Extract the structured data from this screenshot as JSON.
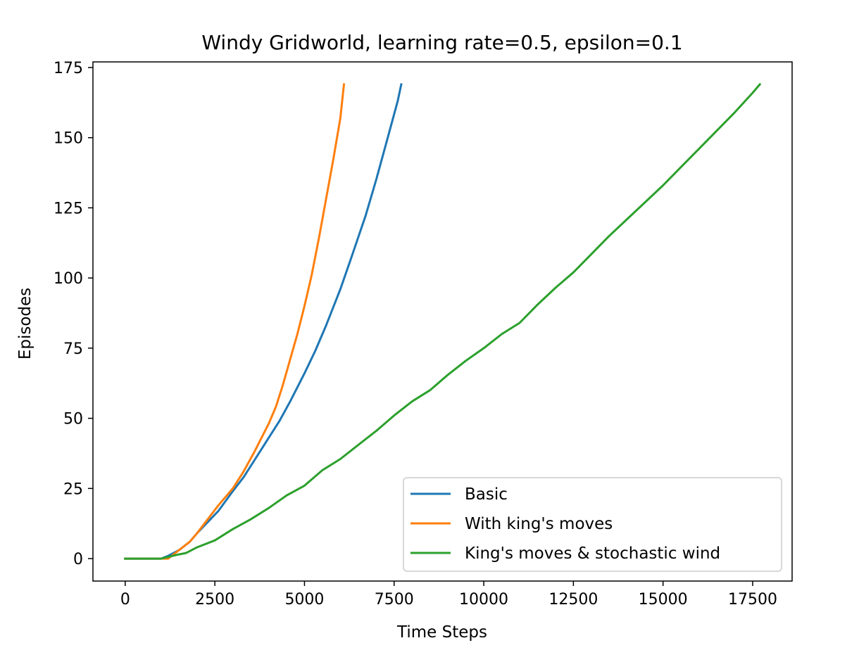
{
  "chart_data": {
    "type": "line",
    "title": "Windy Gridworld, learning rate=0.5, epsilon=0.1",
    "xlabel": "Time Steps",
    "ylabel": "Episodes",
    "xlim": [
      -900,
      18600
    ],
    "ylim": [
      -8,
      177
    ],
    "xticks": [
      0,
      2500,
      5000,
      7500,
      10000,
      12500,
      15000,
      17500
    ],
    "yticks": [
      0,
      25,
      50,
      75,
      100,
      125,
      150,
      175
    ],
    "grid": false,
    "legend": "bottom-right",
    "series": [
      {
        "name": "Basic",
        "color": "#1f77b4",
        "x": [
          0,
          500,
          1000,
          1200,
          1500,
          1800,
          2000,
          2300,
          2600,
          3000,
          3300,
          3600,
          4000,
          4300,
          4600,
          5000,
          5300,
          5600,
          6000,
          6300,
          6700,
          7000,
          7300,
          7600,
          7700
        ],
        "y": [
          0,
          0,
          0,
          1,
          3,
          6,
          9,
          13,
          17,
          24,
          29,
          35,
          43,
          49,
          56,
          66,
          74,
          83,
          96,
          107,
          122,
          135,
          149,
          163,
          169
        ]
      },
      {
        "name": "With king's moves",
        "color": "#ff7f0e",
        "x": [
          0,
          500,
          1000,
          1200,
          1500,
          1800,
          2000,
          2300,
          2600,
          3000,
          3300,
          3600,
          3800,
          4000,
          4200,
          4400,
          4600,
          4800,
          5000,
          5200,
          5400,
          5600,
          5800,
          6000,
          6100
        ],
        "y": [
          0,
          0,
          0,
          0,
          3,
          6,
          9,
          14,
          19,
          25,
          31,
          38,
          43,
          48,
          54,
          62,
          71,
          80,
          90,
          101,
          114,
          128,
          142,
          157,
          169
        ]
      },
      {
        "name": "King's moves & stochastic wind",
        "color": "#2ca02c",
        "x": [
          0,
          500,
          1000,
          1500,
          1700,
          2000,
          2500,
          3000,
          3500,
          4000,
          4500,
          5000,
          5500,
          6000,
          6500,
          7000,
          7500,
          8000,
          8500,
          9000,
          9500,
          10000,
          10500,
          11000,
          11500,
          12000,
          12500,
          13000,
          13500,
          14000,
          14500,
          15000,
          15500,
          16000,
          16500,
          17000,
          17500,
          17700
        ],
        "y": [
          0,
          0,
          0,
          1.5,
          2,
          4,
          6.5,
          10.5,
          14,
          18,
          22.5,
          26,
          31.5,
          35.5,
          40.5,
          45.5,
          51,
          56,
          60,
          65.5,
          70.5,
          75,
          80,
          84,
          90.5,
          96.5,
          102,
          108.5,
          115,
          121,
          127,
          133,
          139.5,
          146,
          152.5,
          159,
          166,
          169
        ]
      }
    ]
  }
}
